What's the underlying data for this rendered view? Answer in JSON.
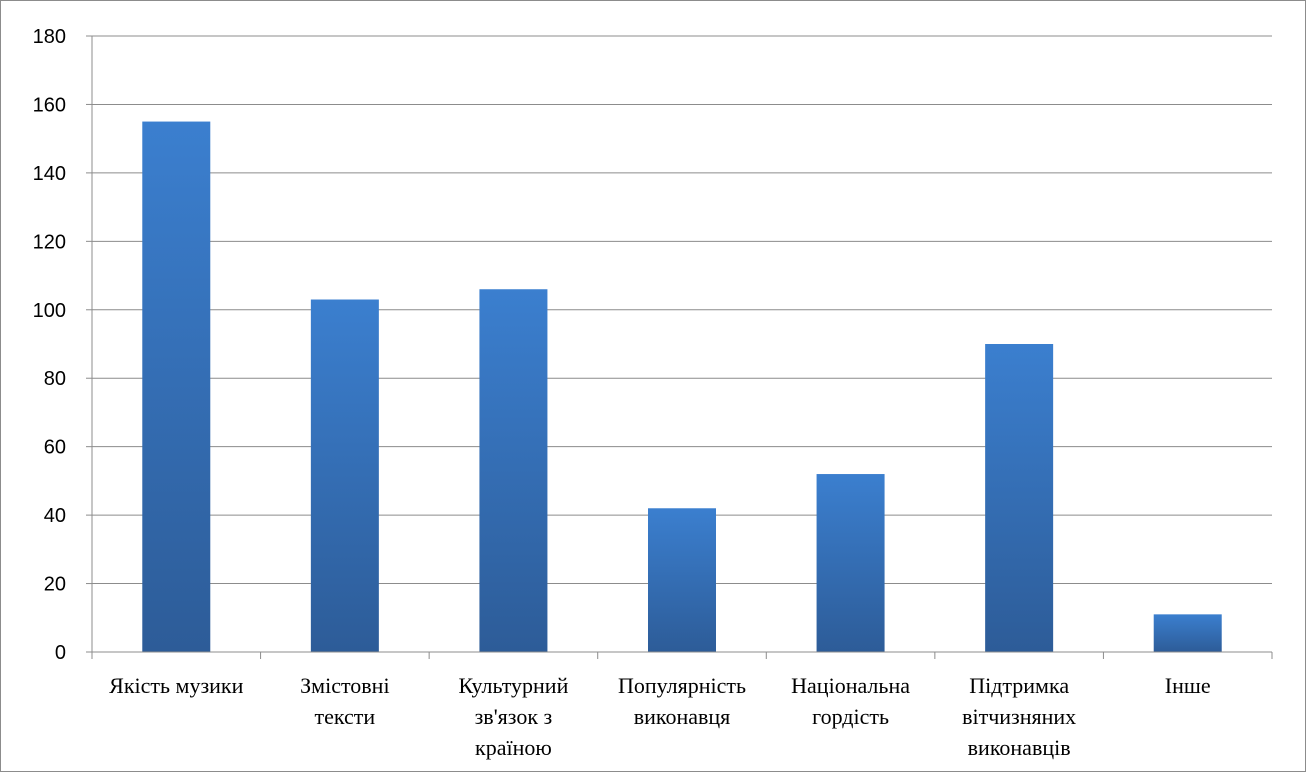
{
  "chart_data": {
    "type": "bar",
    "categories": [
      [
        "Якість музики"
      ],
      [
        "Змістовні",
        "тексти"
      ],
      [
        "Культурний",
        "зв'язок з",
        "країною"
      ],
      [
        "Популярність",
        "виконавця"
      ],
      [
        "Національна",
        "гордість"
      ],
      [
        "Підтримка",
        "вітчизняних",
        "виконавців"
      ],
      [
        "Інше"
      ]
    ],
    "values": [
      155,
      103,
      106,
      42,
      52,
      90,
      11
    ],
    "ylim": [
      0,
      180
    ],
    "yticks": [
      0,
      20,
      40,
      60,
      80,
      100,
      120,
      140,
      160,
      180
    ],
    "grid": true,
    "legend": "none",
    "colors": {
      "bar_top": "#3b7fcf",
      "bar_bottom": "#2d5c98",
      "grid": "#8c8c8c",
      "axis": "#8c8c8c"
    }
  }
}
